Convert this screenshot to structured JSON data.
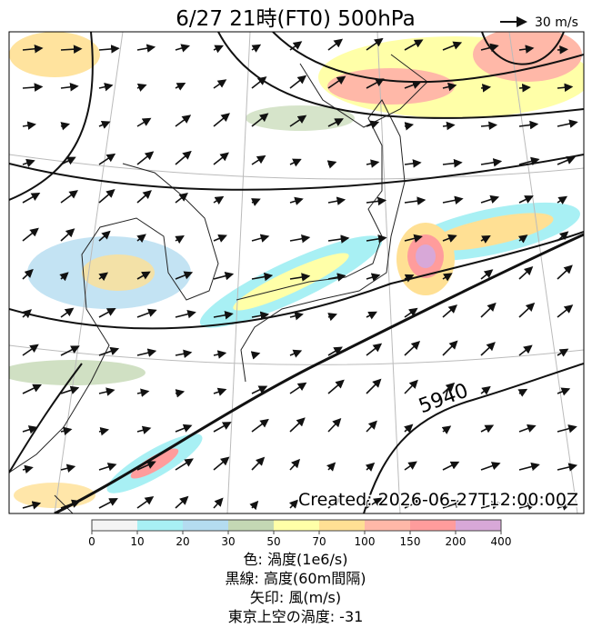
{
  "map": {
    "title": "6/27  21時(FT0)    500hPa",
    "wind_scale_label": "30 m/s",
    "contour_label": "5940",
    "created": "Created: 2026-06-27T12:00:00Z"
  },
  "colorbar": {
    "ticks": [
      0,
      10,
      20,
      30,
      50,
      70,
      100,
      150,
      200,
      400
    ],
    "colors": [
      "#f4f4f4",
      "#a8f0f4",
      "#b4dcf0",
      "#c4d8b4",
      "#ffffa8",
      "#ffe094",
      "#ffb8a8",
      "#ff9c9c",
      "#d8a8d8"
    ]
  },
  "captions": [
    "色: 渦度(1e6/s)",
    "黒線: 高度(60m間隔)",
    "矢印: 風(m/s)",
    "東京上空の渦度: -31"
  ]
}
